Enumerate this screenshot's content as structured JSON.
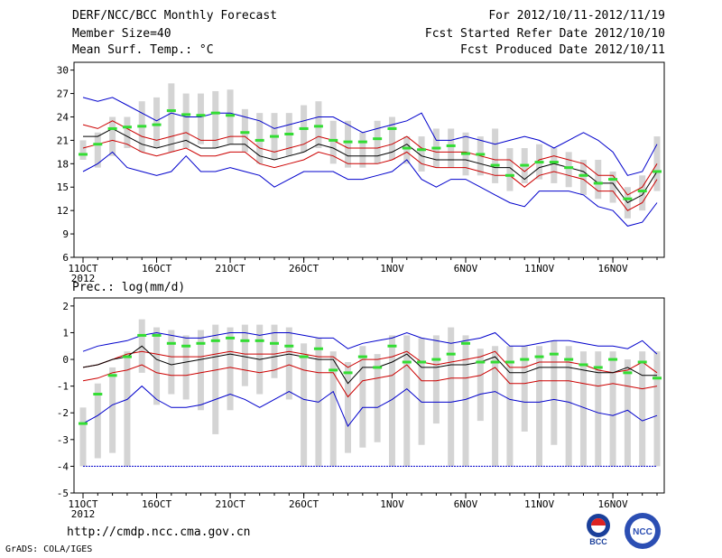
{
  "header": {
    "left": [
      "DERF/NCC/BCC Monthly Forecast",
      "Member Size=40",
      "Mean Surf. Temp.: °C"
    ],
    "right": [
      "For 2012/10/11-2012/11/19",
      "Fcst Started Refer Date 2012/10/10",
      "Fcst Produced Date 2012/10/11"
    ]
  },
  "footer": {
    "url": "http://cmdp.ncc.cma.gov.cn",
    "credit": "GrADS: COLA/IGES"
  },
  "logos": {
    "left_label": "BCC",
    "right_label": "NCC"
  },
  "colors": {
    "envelope": "#0000cc",
    "spread": "#cc0000",
    "mean": "#000000",
    "obs": "#33dd33",
    "box": "#d4d4d4"
  },
  "chart_data": [
    {
      "type": "line",
      "title": "Mean Surf. Temp.: °C",
      "x_labels": [
        "11OCT",
        "16OCT",
        "21OCT",
        "26OCT",
        "1NOV",
        "6NOV",
        "11NOV",
        "16NOV"
      ],
      "x_label_days": [
        1,
        6,
        11,
        16,
        22,
        27,
        32,
        37
      ],
      "year_label": "2012",
      "days": 40,
      "ylim": [
        6,
        31
      ],
      "yticks": [
        6,
        9,
        12,
        15,
        18,
        21,
        24,
        27,
        30
      ],
      "series": [
        {
          "name": "max",
          "values": [
            26.5,
            26,
            26.5,
            25.5,
            24.5,
            23.5,
            24.5,
            24,
            24,
            24.5,
            24.5,
            24,
            23.5,
            22.5,
            23,
            23.5,
            24,
            24,
            23,
            22,
            22.5,
            23,
            23.5,
            24.5,
            21,
            21,
            21.5,
            21,
            20.5,
            21,
            21.5,
            21,
            20,
            21,
            22,
            21,
            19.5,
            16.5,
            17,
            20.5
          ]
        },
        {
          "name": "upper",
          "values": [
            23,
            22.5,
            23.5,
            22.5,
            21.5,
            21,
            21.5,
            22,
            21,
            21,
            21.5,
            21.5,
            20,
            19.5,
            20,
            20.5,
            21.5,
            21,
            20,
            20,
            20,
            20.5,
            21.5,
            20,
            19.5,
            19.5,
            19.5,
            19,
            18.5,
            18.5,
            17,
            18.5,
            19,
            18.5,
            18,
            16.5,
            16.5,
            14,
            15,
            18
          ]
        },
        {
          "name": "mean",
          "values": [
            21.5,
            21.5,
            22.5,
            21.5,
            20.5,
            20,
            20.5,
            21,
            20,
            20,
            20.5,
            20.5,
            19,
            18.5,
            19,
            19.5,
            20.5,
            20,
            19,
            19,
            19,
            19.5,
            20.5,
            19,
            18.5,
            18.5,
            18.5,
            18,
            17.5,
            17.5,
            16,
            17.5,
            18,
            17.5,
            17,
            15.5,
            15.5,
            13,
            14,
            17
          ]
        },
        {
          "name": "lower",
          "values": [
            20,
            20.5,
            21,
            20.5,
            19.5,
            19,
            19.5,
            20,
            19,
            19,
            19.5,
            19.5,
            18,
            17.5,
            18,
            18.5,
            19.5,
            19,
            18,
            18,
            18,
            18.5,
            19.5,
            18,
            17.5,
            17.5,
            17.5,
            17,
            16.5,
            16.5,
            15,
            16.5,
            17,
            16.5,
            16,
            14.5,
            14.5,
            12,
            13,
            16
          ]
        },
        {
          "name": "min",
          "values": [
            17,
            18,
            19.5,
            17.5,
            17,
            16.5,
            17,
            19,
            17,
            17,
            17.5,
            17,
            16.5,
            15,
            16,
            17,
            17,
            17,
            16,
            16,
            16.5,
            17,
            18.5,
            16,
            15,
            16,
            16,
            15,
            14,
            13,
            12.5,
            14.5,
            14.5,
            14.5,
            14,
            12.5,
            12,
            10,
            10.5,
            13
          ]
        },
        {
          "name": "observed",
          "values": [
            19.2,
            20.5,
            22.5,
            22.7,
            22.8,
            23,
            24.8,
            24.3,
            24.2,
            24.5,
            24.2,
            22,
            21,
            21.5,
            21.8,
            22.5,
            22.8,
            21,
            20.8,
            20.8,
            21.2,
            22.5,
            20,
            19.8,
            20,
            20.3,
            19.3,
            19.2,
            17.8,
            16.5,
            17.8,
            18.2,
            18.2,
            17.5,
            16.5,
            15.5,
            16,
            13.5,
            14.5,
            17
          ]
        }
      ],
      "box_ranges": [
        [
          18.5,
          21
        ],
        [
          17.5,
          22
        ],
        [
          19,
          24
        ],
        [
          20,
          24
        ],
        [
          19.5,
          26
        ],
        [
          20,
          26.5
        ],
        [
          19.5,
          28.3
        ],
        [
          20,
          27
        ],
        [
          20.5,
          27
        ],
        [
          20,
          27.3
        ],
        [
          20.5,
          27.5
        ],
        [
          19.5,
          25
        ],
        [
          18,
          24.5
        ],
        [
          18.5,
          24.5
        ],
        [
          19,
          24.5
        ],
        [
          19.5,
          25.5
        ],
        [
          20,
          26
        ],
        [
          18,
          23.5
        ],
        [
          17.5,
          23.5
        ],
        [
          17.5,
          22
        ],
        [
          18,
          23.5
        ],
        [
          18.5,
          24
        ],
        [
          18,
          21.5
        ],
        [
          17,
          21.5
        ],
        [
          17.5,
          22.5
        ],
        [
          17.5,
          22.5
        ],
        [
          16.5,
          22
        ],
        [
          16.5,
          21.5
        ],
        [
          15.5,
          22.5
        ],
        [
          14.5,
          20
        ],
        [
          15.5,
          20
        ],
        [
          16,
          20.5
        ],
        [
          15.5,
          20
        ],
        [
          15,
          19.5
        ],
        [
          14,
          18.5
        ],
        [
          13.5,
          18.5
        ],
        [
          13,
          17
        ],
        [
          11,
          15
        ],
        [
          12,
          16.5
        ],
        [
          14.5,
          21.5
        ]
      ]
    },
    {
      "type": "line",
      "title": "Prec.: log(mm/d)",
      "x_labels": [
        "11OCT",
        "16OCT",
        "21OCT",
        "26OCT",
        "1NOV",
        "6NOV",
        "11NOV",
        "16NOV"
      ],
      "x_label_days": [
        1,
        6,
        11,
        16,
        22,
        27,
        32,
        37
      ],
      "year_label": "2012",
      "days": 40,
      "ylim": [
        -5,
        2.3
      ],
      "yticks": [
        -5,
        -4,
        -3,
        -2,
        -1,
        0,
        1,
        2
      ],
      "floor_line": -4,
      "series": [
        {
          "name": "max",
          "values": [
            0.3,
            0.5,
            0.6,
            0.7,
            0.9,
            1,
            0.9,
            0.8,
            0.8,
            0.9,
            1,
            1,
            0.9,
            1,
            1,
            0.9,
            0.8,
            0.8,
            0.4,
            0.6,
            0.7,
            0.8,
            1,
            0.8,
            0.7,
            0.6,
            0.7,
            0.8,
            1,
            0.5,
            0.5,
            0.6,
            0.7,
            0.7,
            0.6,
            0.5,
            0.5,
            0.4,
            0.7,
            0.2
          ]
        },
        {
          "name": "upper",
          "values": [
            -0.3,
            -0.2,
            0,
            0.2,
            0.3,
            0.2,
            0.1,
            0.1,
            0.1,
            0.2,
            0.3,
            0.2,
            0.2,
            0.2,
            0.3,
            0.2,
            0.1,
            0.1,
            -0.3,
            0,
            0,
            0.1,
            0.3,
            -0.1,
            -0.2,
            -0.1,
            0,
            0.1,
            0.3,
            -0.3,
            -0.3,
            -0.1,
            -0.1,
            -0.1,
            -0.2,
            -0.4,
            -0.5,
            -0.4,
            -0.1,
            -0.5
          ]
        },
        {
          "name": "mean",
          "values": [
            -0.3,
            -0.2,
            0,
            0.1,
            0.5,
            0,
            -0.2,
            -0.1,
            0,
            0.1,
            0.2,
            0.1,
            0,
            0.1,
            0.2,
            0.1,
            0,
            0,
            -0.9,
            -0.3,
            -0.3,
            -0.1,
            0.2,
            -0.3,
            -0.3,
            -0.2,
            -0.2,
            -0.1,
            0.1,
            -0.5,
            -0.5,
            -0.3,
            -0.3,
            -0.3,
            -0.4,
            -0.5,
            -0.5,
            -0.3,
            -0.6,
            -0.6
          ]
        },
        {
          "name": "lower",
          "values": [
            -0.8,
            -0.7,
            -0.5,
            -0.4,
            -0.2,
            -0.5,
            -0.6,
            -0.6,
            -0.5,
            -0.4,
            -0.3,
            -0.4,
            -0.5,
            -0.4,
            -0.2,
            -0.4,
            -0.5,
            -0.5,
            -1.4,
            -0.8,
            -0.7,
            -0.6,
            -0.2,
            -0.8,
            -0.8,
            -0.7,
            -0.7,
            -0.6,
            -0.3,
            -0.9,
            -0.9,
            -0.8,
            -0.8,
            -0.8,
            -0.9,
            -1,
            -0.9,
            -1,
            -1.1,
            -1
          ]
        },
        {
          "name": "min",
          "values": [
            -2.4,
            -2.1,
            -1.7,
            -1.5,
            -1,
            -1.5,
            -1.8,
            -1.8,
            -1.7,
            -1.5,
            -1.3,
            -1.5,
            -1.8,
            -1.5,
            -1.2,
            -1.5,
            -1.6,
            -1.2,
            -2.5,
            -1.8,
            -1.8,
            -1.5,
            -1.1,
            -1.6,
            -1.6,
            -1.6,
            -1.5,
            -1.3,
            -1.2,
            -1.5,
            -1.6,
            -1.6,
            -1.5,
            -1.6,
            -1.8,
            -2,
            -2.1,
            -1.9,
            -2.3,
            -2.1
          ]
        },
        {
          "name": "observed",
          "values": [
            -2.4,
            -1.3,
            -0.6,
            0.1,
            0.9,
            0.9,
            0.6,
            0.5,
            0.6,
            0.7,
            0.8,
            0.7,
            0.7,
            0.6,
            0.5,
            0.1,
            0.4,
            -0.4,
            -0.5,
            0.1,
            -0.3,
            0.5,
            -0.1,
            -0.1,
            0,
            0.2,
            0.6,
            -0.1,
            -0.1,
            -0.1,
            0,
            0.1,
            0.2,
            0,
            -0.2,
            -0.3,
            0,
            -0.5,
            -0.1,
            -0.7
          ]
        }
      ],
      "box_ranges": [
        [
          -4,
          -1.8
        ],
        [
          -3.7,
          -0.9
        ],
        [
          -3.5,
          -0.3
        ],
        [
          -4,
          0.3
        ],
        [
          -0.5,
          1.5
        ],
        [
          -1.7,
          1.2
        ],
        [
          -1.3,
          1.1
        ],
        [
          -1.5,
          0.9
        ],
        [
          -1.9,
          1.1
        ],
        [
          -2.8,
          1.3
        ],
        [
          -1.9,
          1.2
        ],
        [
          -1,
          1.3
        ],
        [
          -1.3,
          1.3
        ],
        [
          -0.7,
          1.3
        ],
        [
          -1.5,
          1.2
        ],
        [
          -4,
          0.6
        ],
        [
          -4,
          0.8
        ],
        [
          -4,
          0.3
        ],
        [
          -3.5,
          -0.1
        ],
        [
          -3.3,
          0.5
        ],
        [
          -3.1,
          0.2
        ],
        [
          -4,
          0.9
        ],
        [
          -4,
          0.9
        ],
        [
          -3.2,
          0.8
        ],
        [
          -2.4,
          0.9
        ],
        [
          -4,
          1.2
        ],
        [
          -4,
          0.9
        ],
        [
          -2.3,
          0.4
        ],
        [
          -4,
          0.5
        ],
        [
          -4,
          0.5
        ],
        [
          -2.7,
          0.5
        ],
        [
          -4,
          0.5
        ],
        [
          -3.2,
          0.7
        ],
        [
          -4,
          0.5
        ],
        [
          -4,
          0.3
        ],
        [
          -4,
          0.3
        ],
        [
          -4,
          0.3
        ],
        [
          -4,
          0
        ],
        [
          -4,
          0.3
        ],
        [
          -4,
          0.3
        ]
      ]
    }
  ]
}
